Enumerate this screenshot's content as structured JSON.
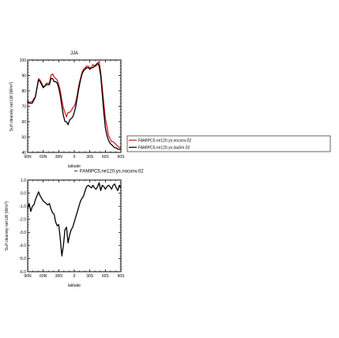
{
  "chart_data": [
    {
      "type": "line",
      "title": "JJA",
      "xlabel": "latitude",
      "ylabel": "Surf clearsky net LW (W/m",
      "ylabel_sup": "2",
      "ylabel_end": ")",
      "xlim": [
        90,
        -90
      ],
      "ylim": [
        40,
        100
      ],
      "x_ticks": [
        90,
        60,
        30,
        0,
        -30,
        -60,
        -90
      ],
      "x_tick_labels": [
        "90N",
        "60N",
        "30N",
        "0",
        "30S",
        "60S",
        "90S"
      ],
      "y_ticks": [
        40,
        50,
        60,
        70,
        80,
        90,
        100
      ],
      "y_tick_labels": [
        "40",
        "50",
        "60",
        "70",
        "80",
        "90",
        "100"
      ],
      "legend": [
        "FAMIPC5.ne120.ys.noconv.02",
        "FAMIPC5.ne120.ys.tau5m.02"
      ],
      "legend_position": "right",
      "series": [
        {
          "name": "FAMIPC5.ne120.ys.noconv.02",
          "color": "#d42020",
          "x": [
            90,
            87,
            84,
            81,
            78,
            75,
            72,
            69,
            66,
            63,
            60,
            57,
            54,
            51,
            48,
            45,
            42,
            39,
            36,
            33,
            30,
            27,
            24,
            21,
            18,
            15,
            12,
            9,
            6,
            3,
            0,
            -3,
            -6,
            -9,
            -12,
            -15,
            -18,
            -21,
            -24,
            -27,
            -30,
            -33,
            -36,
            -39,
            -42,
            -45,
            -48,
            -51,
            -54,
            -57,
            -60,
            -63,
            -66,
            -69,
            -72,
            -75,
            -78,
            -81,
            -84,
            -87,
            -90
          ],
          "y": [
            74,
            72,
            73,
            73,
            75,
            76,
            82,
            88,
            87,
            85,
            83,
            83,
            85,
            85,
            85,
            90,
            91,
            89,
            88,
            87,
            84,
            80,
            74,
            69,
            66,
            63,
            66,
            66,
            67,
            69,
            70,
            73,
            78,
            84,
            88,
            92,
            94,
            95,
            96,
            96,
            95,
            95,
            97,
            96,
            96,
            98,
            99,
            92,
            82,
            72,
            62,
            57,
            51,
            49,
            47,
            47,
            46,
            45,
            44,
            43,
            43
          ]
        },
        {
          "name": "FAMIPC5.ne120.ys.tau5m.02",
          "color": "#000000",
          "x": [
            90,
            87,
            84,
            81,
            78,
            75,
            72,
            69,
            66,
            63,
            60,
            57,
            54,
            51,
            48,
            45,
            42,
            39,
            36,
            33,
            30,
            27,
            24,
            21,
            18,
            15,
            12,
            9,
            6,
            3,
            0,
            -3,
            -6,
            -9,
            -12,
            -15,
            -18,
            -21,
            -24,
            -27,
            -30,
            -33,
            -36,
            -39,
            -42,
            -45,
            -48,
            -51,
            -54,
            -57,
            -60,
            -63,
            -66,
            -69,
            -72,
            -75,
            -78,
            -81,
            -84,
            -87,
            -90
          ],
          "y": [
            73,
            72,
            72,
            72,
            74,
            76,
            82,
            87,
            86,
            84,
            82,
            83,
            84,
            84,
            84,
            88,
            88,
            86,
            86,
            85,
            82,
            77,
            70,
            64,
            60,
            60,
            58,
            61,
            62,
            63,
            66,
            70,
            76,
            82,
            87,
            91,
            93,
            94,
            95,
            95,
            94,
            95,
            95,
            96,
            97,
            98,
            96,
            90,
            78,
            66,
            56,
            51,
            48,
            46,
            45,
            44,
            43,
            43,
            42,
            42,
            42
          ]
        }
      ]
    },
    {
      "type": "line",
      "title": "",
      "xlabel": "latitude",
      "ylabel": "Surf clearsky net LW (W/m",
      "ylabel_sup": "2",
      "ylabel_end": ")",
      "xlim": [
        90,
        -90
      ],
      "ylim": [
        -6,
        1
      ],
      "x_ticks": [
        90,
        60,
        30,
        0,
        -30,
        -60,
        -90
      ],
      "x_tick_labels": [
        "90N",
        "60N",
        "30N",
        "0",
        "30S",
        "60S",
        "90S"
      ],
      "y_ticks": [
        -6,
        -5,
        -4,
        -3,
        -2,
        -1,
        0,
        1
      ],
      "y_tick_labels": [
        "-6.0",
        "-5.0",
        "-4.0",
        "-3.0",
        "-2.0",
        "-1.0",
        "0.0",
        "1.0"
      ],
      "legend": [
        "FAMIPC5.ne120.ys.noconv.02"
      ],
      "legend_position": "top-right",
      "series": [
        {
          "name": "FAMIPC5.ne120.ys.noconv.02",
          "color": "#000000",
          "x": [
            90,
            87,
            84,
            81,
            78,
            75,
            72,
            69,
            66,
            63,
            60,
            57,
            54,
            51,
            48,
            45,
            42,
            39,
            36,
            33,
            30,
            27,
            24,
            21,
            18,
            15,
            12,
            9,
            6,
            3,
            0,
            -3,
            -6,
            -9,
            -12,
            -15,
            -18,
            -21,
            -24,
            -27,
            -30,
            -33,
            -36,
            -39,
            -42,
            -45,
            -48,
            -51,
            -54,
            -57,
            -60,
            -63,
            -66,
            -69,
            -72,
            -75,
            -78,
            -81,
            -84,
            -87,
            -90
          ],
          "y": [
            -1.2,
            -0.8,
            -1.4,
            -1.0,
            -0.9,
            -0.5,
            -0.2,
            0.1,
            -0.2,
            -0.4,
            -0.6,
            -0.7,
            -0.8,
            -0.9,
            -0.8,
            -1.2,
            -1.5,
            -1.6,
            -2.2,
            -2.5,
            -2.4,
            -3.5,
            -4.8,
            -4.0,
            -2.8,
            -2.6,
            -3.8,
            -3.2,
            -2.8,
            -2.6,
            -2.2,
            -1.8,
            -1.4,
            -1.0,
            -0.6,
            -0.4,
            -0.2,
            0.2,
            0.5,
            0.6,
            0.5,
            0.4,
            0.6,
            0.4,
            0.3,
            0.5,
            0.8,
            0.2,
            0.6,
            0.5,
            0.3,
            0.5,
            0.6,
            0.5,
            0.3,
            0.6,
            0.7,
            0.4,
            0.2,
            0.6,
            0.4
          ]
        }
      ]
    }
  ]
}
